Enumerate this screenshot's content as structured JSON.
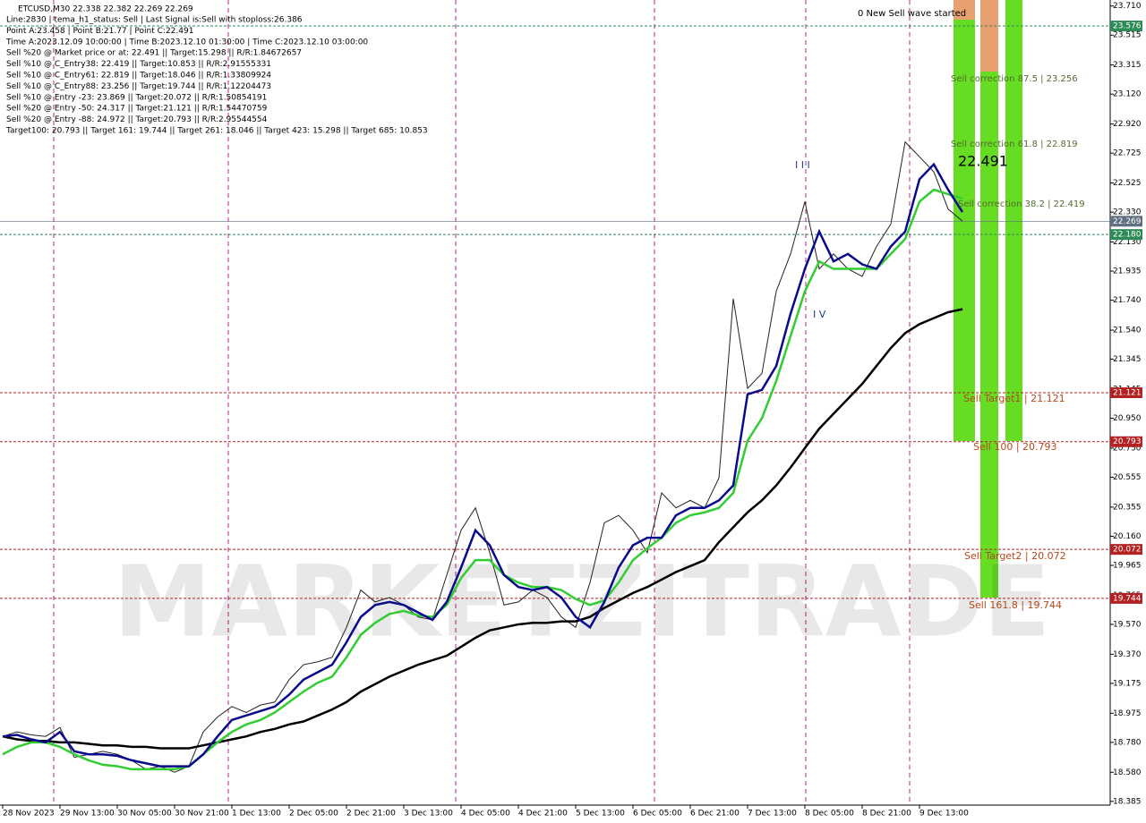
{
  "chart_data": {
    "type": "line",
    "title": "ETCUSD,M30  22.338 22.382 22.269 22.269",
    "info": [
      "Line:2830  | tema_h1_status: Sell  | Last Signal is:Sell with stoploss:26.386",
      "Point A:23.458  | Point B:21.77  | Point C:22.491",
      "Time A:2023.12.09 10:00:00  | Time B:2023.12.10 01:30:00  | Time C:2023.12.10 03:00:00",
      "Sell %20 @ Market price or at: 22.491  || Target:15.298  || R/R:1.84672657",
      "Sell %10 @ C_Entry38: 22.419  || Target:10.853  || R/R:2.91555331",
      "Sell %10 @ C_Entry61: 22.819  || Target:18.046  || R/R:1.33809924",
      "Sell %10 @ C_Entry88: 23.256  || Target:19.744  || R/R:1.12204473",
      "Sell %10 @ Entry -23: 23.869  || Target:20.072  || R/R:1.50854191",
      "Sell %20 @ Entry -50: 24.317  || Target:21.121  || R/R:1.54470759",
      "Sell %20 @ Entry -88: 24.972  || Target:20.793  || R/R:2.95544554",
      "Target100: 20.793  || Target 161: 19.744  || Target 261: 18.046  || Target 423: 15.298  || Target 685: 10.853"
    ],
    "watermark": "MARKETZITRADE",
    "annotations": [
      "0 New Sell wave started",
      "Sell correction 87.5 | 23.256",
      "Sell correction 61.8 | 22.819",
      "Sell correction 38.2 | 22.419",
      "22.491",
      "I I I",
      "I V",
      "Sell Target1 | 21.121",
      "Sell 100 | 20.793",
      "Sell Target2 | 20.072",
      "Sell 161.8 | 19.744"
    ],
    "categories": [
      "28 Nov 2023",
      null,
      null,
      null,
      "29 Nov 13:00",
      null,
      null,
      null,
      "30 Nov 05:00",
      null,
      null,
      null,
      "30 Nov 21:00",
      null,
      null,
      null,
      "1 Dec 13:00",
      null,
      null,
      null,
      "2 Dec 05:00",
      null,
      null,
      null,
      "2 Dec 21:00",
      null,
      null,
      null,
      "3 Dec 13:00",
      null,
      null,
      null,
      "4 Dec 05:00",
      null,
      null,
      null,
      "4 Dec 21:00",
      null,
      null,
      null,
      "5 Dec 13:00",
      null,
      null,
      null,
      "6 Dec 05:00",
      null,
      null,
      null,
      "6 Dec 21:00",
      null,
      null,
      null,
      "7 Dec 13:00",
      null,
      null,
      null,
      "8 Dec 05:00",
      null,
      null,
      null,
      "8 Dec 21:00",
      null,
      null,
      null,
      "9 Dec 13:00",
      null,
      null,
      null
    ],
    "series": [
      {
        "color": "#222222",
        "values": [
          18.82,
          18.85,
          18.83,
          18.82,
          18.88,
          18.68,
          18.7,
          18.72,
          18.7,
          18.66,
          18.6,
          18.62,
          18.58,
          18.62,
          18.85,
          18.95,
          19.02,
          18.98,
          19.03,
          19.05,
          19.2,
          19.3,
          19.32,
          19.35,
          19.55,
          19.8,
          19.72,
          19.75,
          19.7,
          19.62,
          19.6,
          19.9,
          20.2,
          20.35,
          20.05,
          19.7,
          19.72,
          19.8,
          19.75,
          19.62,
          19.55,
          19.85,
          20.25,
          20.3,
          20.2,
          20.05,
          20.45,
          20.35,
          20.4,
          20.35,
          20.55,
          21.75,
          21.15,
          21.25,
          21.8,
          22.05,
          22.4,
          21.95,
          22.05,
          21.95,
          21.9,
          22.1,
          22.25,
          22.8,
          22.7,
          22.6,
          22.35,
          22.27
        ]
      },
      {
        "color": "#000000",
        "values": [
          18.82,
          18.8,
          18.79,
          18.79,
          18.78,
          18.78,
          18.77,
          18.76,
          18.76,
          18.75,
          18.75,
          18.74,
          18.74,
          18.74,
          18.76,
          18.78,
          18.8,
          18.82,
          18.85,
          18.87,
          18.9,
          18.92,
          18.96,
          19.0,
          19.05,
          19.12,
          19.17,
          19.22,
          19.26,
          19.3,
          19.33,
          19.36,
          19.42,
          19.48,
          19.53,
          19.55,
          19.57,
          19.58,
          19.58,
          19.59,
          19.59,
          19.62,
          19.68,
          19.73,
          19.78,
          19.82,
          19.87,
          19.92,
          19.96,
          20.0,
          20.12,
          20.22,
          20.32,
          20.4,
          20.5,
          20.62,
          20.75,
          20.88,
          20.98,
          21.08,
          21.18,
          21.3,
          21.42,
          21.52,
          21.58,
          21.62,
          21.66,
          21.68
        ]
      },
      {
        "color": "#32cd32",
        "values": [
          18.7,
          18.75,
          18.78,
          18.78,
          18.75,
          18.7,
          18.66,
          18.63,
          18.62,
          18.6,
          18.6,
          18.6,
          18.6,
          18.62,
          18.7,
          18.78,
          18.85,
          18.9,
          18.93,
          18.98,
          19.05,
          19.12,
          19.18,
          19.22,
          19.35,
          19.5,
          19.58,
          19.64,
          19.66,
          19.63,
          19.62,
          19.7,
          19.88,
          20.0,
          20.0,
          19.9,
          19.85,
          19.82,
          19.82,
          19.8,
          19.74,
          19.7,
          19.73,
          19.85,
          20.0,
          20.08,
          20.15,
          20.25,
          20.3,
          20.32,
          20.35,
          20.45,
          20.8,
          20.95,
          21.2,
          21.5,
          21.8,
          22.0,
          21.95,
          21.95,
          21.95,
          21.95,
          22.05,
          22.15,
          22.4,
          22.48,
          22.45,
          22.42
        ]
      },
      {
        "color": "#0a0a8c",
        "values": [
          18.82,
          18.83,
          18.8,
          18.78,
          18.85,
          18.72,
          18.7,
          18.7,
          18.69,
          18.66,
          18.64,
          18.62,
          18.62,
          18.62,
          18.7,
          18.82,
          18.93,
          18.96,
          18.99,
          19.02,
          19.1,
          19.2,
          19.25,
          19.3,
          19.45,
          19.62,
          19.7,
          19.72,
          19.7,
          19.65,
          19.6,
          19.72,
          19.95,
          20.2,
          20.1,
          19.9,
          19.82,
          19.8,
          19.82,
          19.75,
          19.62,
          19.55,
          19.72,
          19.95,
          20.1,
          20.15,
          20.15,
          20.3,
          20.35,
          20.35,
          20.4,
          20.5,
          21.11,
          21.14,
          21.3,
          21.65,
          21.95,
          22.2,
          22.0,
          22.05,
          21.98,
          21.95,
          22.1,
          22.2,
          22.55,
          22.65,
          22.48,
          22.33
        ]
      }
    ],
    "levels": [
      {
        "value": 23.576,
        "label": "23.576",
        "color": "#2e8b57"
      },
      {
        "value": 22.269,
        "label": "22.269",
        "color": "#607080"
      },
      {
        "value": 22.18,
        "label": "22.180",
        "color": "#2e8b57"
      },
      {
        "value": 21.121,
        "label": "21.121",
        "color": "#b22222"
      },
      {
        "value": 20.793,
        "label": "20.793",
        "color": "#b22222"
      },
      {
        "value": 20.072,
        "label": "20.072",
        "color": "#b22222"
      },
      {
        "value": 19.744,
        "label": "19.744",
        "color": "#b22222"
      }
    ],
    "ylim": [
      18.36,
      23.75
    ],
    "yticks": [
      {
        "value": 23.71,
        "label": "23.710"
      },
      23.515,
      23.315,
      {
        "value": 23.12,
        "label": "23.120"
      },
      {
        "value": 22.92,
        "label": "22.920"
      },
      22.725,
      22.525,
      {
        "value": 22.33,
        "label": "22.330"
      },
      {
        "value": 22.13,
        "label": "22.130"
      },
      21.935,
      {
        "value": 21.74,
        "label": "21.740"
      },
      {
        "value": 21.54,
        "label": "21.540"
      },
      21.345,
      21.145,
      {
        "value": 20.95,
        "label": "20.950"
      },
      {
        "value": 20.75,
        "label": "20.750"
      },
      20.555,
      20.355,
      {
        "value": 20.16,
        "label": "20.160"
      },
      19.965,
      19.765,
      {
        "value": 19.57,
        "label": "19.570"
      },
      {
        "value": 19.37,
        "label": "19.370"
      },
      19.175,
      18.975,
      {
        "value": 18.78,
        "label": "18.780"
      },
      {
        "value": 18.58,
        "label": "18.580"
      },
      18.385
    ]
  }
}
